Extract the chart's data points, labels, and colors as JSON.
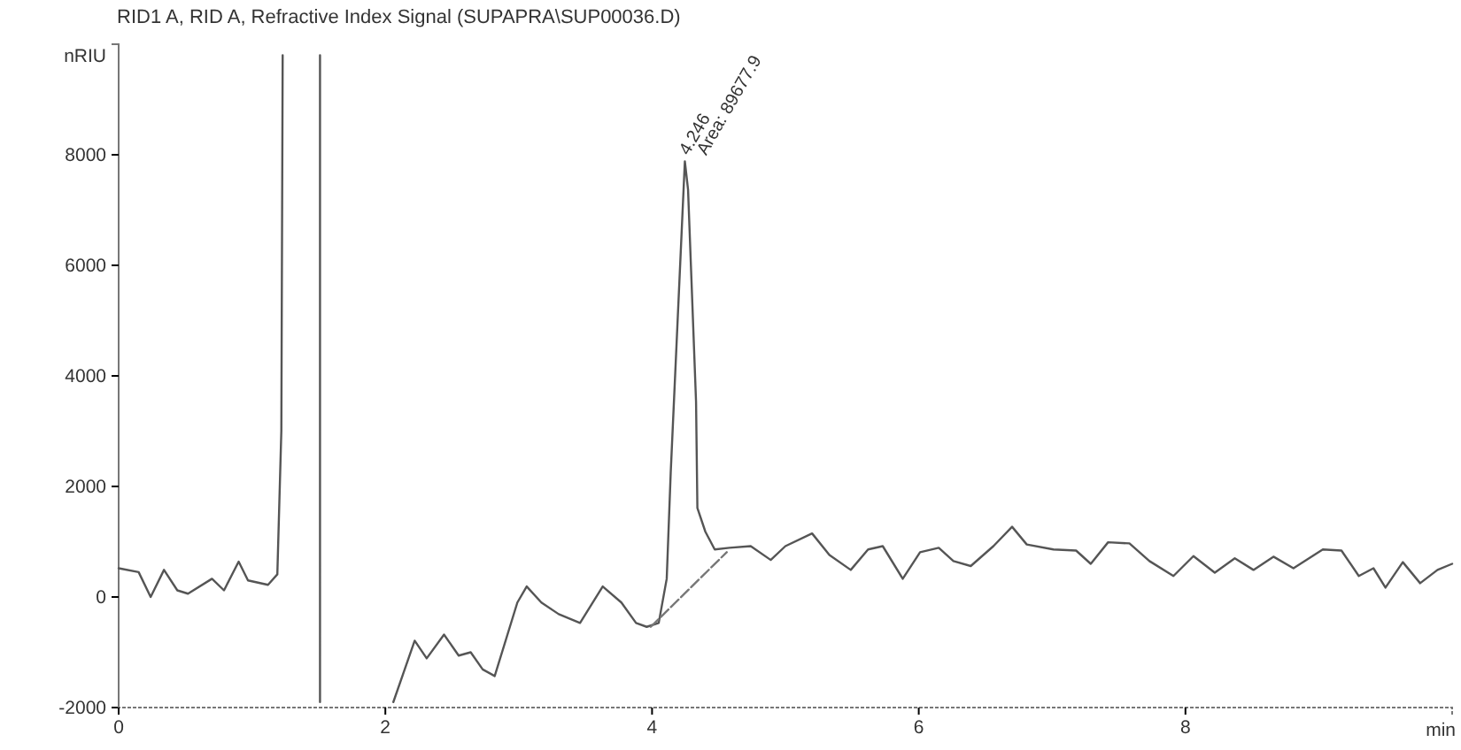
{
  "chart_data": {
    "type": "line",
    "title": "RID1 A, RID A, Refractive Index Signal (SUPAPRA\\SUP00036.D)",
    "xlabel": "min",
    "ylabel": "nRIU",
    "xlim": [
      0,
      10
    ],
    "ylim": [
      -2000,
      10000
    ],
    "xticks": [
      0,
      2,
      4,
      6,
      8
    ],
    "yticks": [
      -2000,
      0,
      2000,
      4000,
      6000,
      8000
    ],
    "grid": false,
    "marker": "none",
    "annotations": [
      {
        "text": "4.246",
        "x": 4.246,
        "y": 7880
      },
      {
        "text": "Area: 89677.9",
        "x": 4.246,
        "y": 7880
      }
    ],
    "series": [
      {
        "color": "#555555",
        "line_style": "solid",
        "x": [
          0,
          0.15,
          0.24,
          0.34,
          0.44,
          0.52,
          0.7,
          0.79,
          0.9,
          0.97,
          1.12,
          1.19,
          1.22,
          1.23,
          1.37,
          1.51,
          1.51,
          1.8,
          2.06,
          2.22,
          2.31,
          2.44,
          2.55,
          2.64,
          2.73,
          2.82,
          2.99,
          3.06,
          3.17,
          3.3,
          3.46,
          3.63,
          3.77,
          3.88,
          3.96,
          4.05,
          4.11,
          4.14,
          4.246,
          4.27,
          4.33,
          4.34,
          4.4,
          4.47,
          4.58,
          4.74,
          4.89,
          5.0,
          5.2,
          5.33,
          5.49,
          5.62,
          5.73,
          5.88,
          6.01,
          6.15,
          6.26,
          6.39,
          6.56,
          6.7,
          6.81,
          7.01,
          7.18,
          7.29,
          7.42,
          7.58,
          7.73,
          7.91,
          8.06,
          8.22,
          8.37,
          8.51,
          8.66,
          8.81,
          9.03,
          9.17,
          9.3,
          9.41,
          9.5,
          9.63,
          9.76,
          9.89,
          10
        ],
        "values": [
          520,
          450,
          0,
          490,
          120,
          60,
          330,
          120,
          640,
          300,
          220,
          410,
          3000,
          9800,
          null,
          9800,
          -1900,
          null,
          -1900,
          -790,
          -1110,
          -680,
          -1060,
          -1000,
          -1310,
          -1430,
          -100,
          190,
          -100,
          -310,
          -470,
          190,
          -100,
          -470,
          -540,
          -470,
          330,
          2250,
          7880,
          7370,
          3530,
          1610,
          1180,
          860,
          890,
          920,
          670,
          920,
          1150,
          760,
          490,
          860,
          920,
          330,
          810,
          890,
          650,
          560,
          920,
          1270,
          950,
          860,
          840,
          600,
          990,
          970,
          650,
          380,
          740,
          440,
          700,
          490,
          730,
          520,
          860,
          840,
          380,
          520,
          170,
          630,
          250,
          490,
          600
        ]
      },
      {
        "type": "line",
        "color": "#777777",
        "line_style": "dashed",
        "x": [
          3.99,
          4.56
        ],
        "values": [
          -540,
          810
        ]
      }
    ]
  }
}
